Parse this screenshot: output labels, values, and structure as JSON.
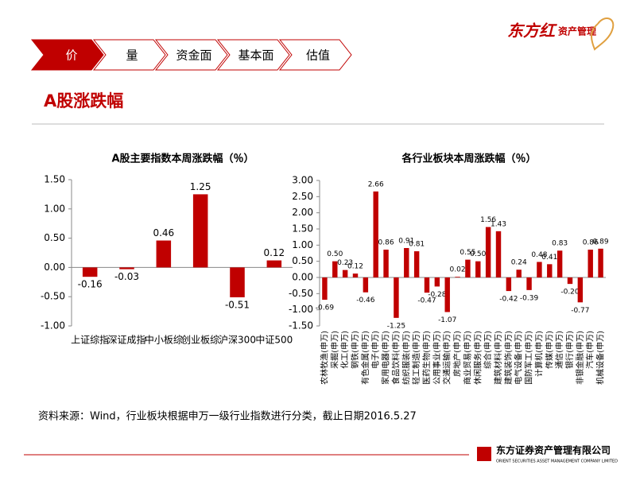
{
  "header": {
    "tabs": [
      "价",
      "量",
      "资金面",
      "基本面",
      "估值"
    ],
    "logo": "东方红",
    "logo_sub": "资产管理"
  },
  "title": "A股涨跌幅",
  "chart_data": [
    {
      "type": "bar",
      "title": "A股主要指数本周涨跌幅（％）",
      "color": "#c00000",
      "categories": [
        "上证综指",
        "深证成指",
        "中小板综",
        "创业板综",
        "沪深300",
        "中证500"
      ],
      "values": [
        -0.16,
        -0.03,
        0.46,
        1.25,
        -0.51,
        0.12
      ],
      "ylim": [
        -1,
        1.5
      ],
      "yticks": [
        {
          "value": -1,
          "label": "-1.00"
        },
        {
          "value": -0.5,
          "label": "-0.50"
        },
        {
          "value": 0,
          "label": "0.00"
        },
        {
          "value": 0.5,
          "label": "0.50"
        },
        {
          "value": 1,
          "label": "1.00"
        },
        {
          "value": 1.5,
          "label": "1.50"
        }
      ]
    },
    {
      "type": "bar",
      "title": "各行业板块本周涨跌幅（％）",
      "color": "#c00000",
      "categories": [
        "农林牧渔(申万)",
        "采掘(申万)",
        "化工(申万)",
        "钢铁(申万)",
        "有色金属(申万)",
        "电子(申万)",
        "家用电器(申万)",
        "食品饮料(申万)",
        "纺织服装(申万)",
        "轻工制造(申万)",
        "医药生物(申万)",
        "公用事业(申万)",
        "交通运输(申万)",
        "房地产(申万)",
        "商业贸易(申万)",
        "休闲服务(申万)",
        "综合(申万)",
        "建筑材料(申万)",
        "建筑装饰(申万)",
        "电气设备(申万)",
        "国防军工(申万)",
        "计算机(申万)",
        "传媒(申万)",
        "通信(申万)",
        "银行(申万)",
        "非银金融(申万)",
        "汽车(申万)",
        "机械设备(申万)"
      ],
      "values": [
        -0.69,
        0.5,
        0.23,
        0.12,
        -0.46,
        2.66,
        0.86,
        -1.25,
        0.91,
        0.81,
        -0.47,
        -0.28,
        -1.07,
        0.02,
        0.55,
        0.5,
        1.56,
        1.43,
        -0.42,
        0.24,
        -0.39,
        0.48,
        0.41,
        0.83,
        -0.2,
        -0.77,
        0.86,
        0.89
      ],
      "value_labels": [
        "-0.69",
        "0.50",
        "0.23",
        "0.12",
        "-0.46",
        "2.66",
        "0.86",
        "-1.25",
        "0.91",
        "0.81",
        "-0.47",
        "-0.28",
        "-1.07",
        "0.02",
        "0.55",
        "0.50",
        "1.56",
        "1.43",
        "-0.42",
        "0.24",
        "-0.39",
        "0.48",
        "0.41",
        "0.83",
        "-0.20",
        "-0.77",
        "0.86",
        "0.89"
      ],
      "ylim": [
        -1.5,
        3
      ],
      "yticks": [
        {
          "value": -1.5,
          "label": "-1.50"
        },
        {
          "value": -1,
          "label": "-1.00"
        },
        {
          "value": -0.5,
          "label": "-0.50"
        },
        {
          "value": 0,
          "label": "0.00"
        },
        {
          "value": 0.5,
          "label": "0.50"
        },
        {
          "value": 1,
          "label": "1.00"
        },
        {
          "value": 1.5,
          "label": "1.50"
        },
        {
          "value": 2,
          "label": "2.00"
        },
        {
          "value": 2.5,
          "label": "2.50"
        },
        {
          "value": 3,
          "label": "3.00"
        }
      ]
    }
  ],
  "source": "资料来源：Wind，行业板块根据申万一级行业指数进行分类，截止日期2016.5.27",
  "footer": {
    "company": "东方证券资产管理有限公司",
    "company_en": "ORIENT SECURITIES ASSET MANAGEMENT COMPANY LIMITED"
  }
}
